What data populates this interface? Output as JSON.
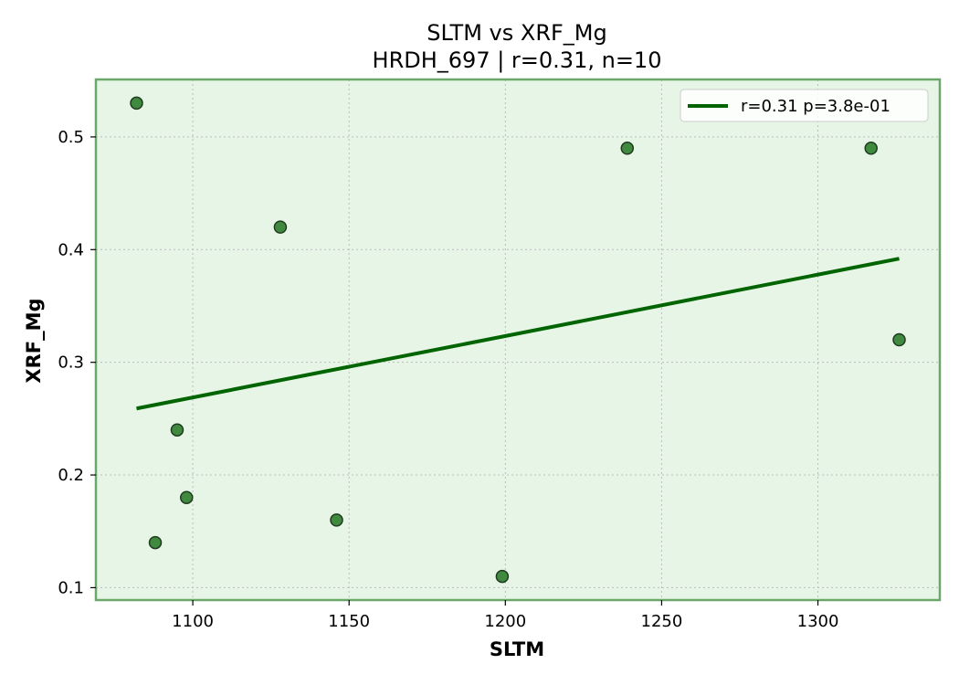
{
  "chart_data": {
    "type": "scatter",
    "title": "SLTM vs XRF_Mg",
    "subtitle": "HRDH_697 | r=0.31, n=10",
    "xlabel": "SLTM",
    "ylabel": "XRF_Mg",
    "xlim": [
      1069,
      1339
    ],
    "ylim": [
      0.089,
      0.551
    ],
    "xticks": [
      1100,
      1150,
      1200,
      1250,
      1300
    ],
    "yticks": [
      0.1,
      0.2,
      0.3,
      0.4,
      0.5
    ],
    "xtick_labels": [
      "1100",
      "1150",
      "1200",
      "1250",
      "1300"
    ],
    "ytick_labels": [
      "0.1",
      "0.2",
      "0.3",
      "0.4",
      "0.5"
    ],
    "grid": true,
    "legend_position": "top-right",
    "colors": {
      "background": "#e7f5e7",
      "frame": "#6aa86a",
      "point_fill": "#3f8a3f",
      "point_edge": "#1f3a1f",
      "fit_line": "#006400"
    },
    "points": [
      {
        "x": 1082,
        "y": 0.53
      },
      {
        "x": 1088,
        "y": 0.14
      },
      {
        "x": 1095,
        "y": 0.24
      },
      {
        "x": 1098,
        "y": 0.18
      },
      {
        "x": 1128,
        "y": 0.42
      },
      {
        "x": 1146,
        "y": 0.16
      },
      {
        "x": 1199,
        "y": 0.11
      },
      {
        "x": 1239,
        "y": 0.49
      },
      {
        "x": 1317,
        "y": 0.49
      },
      {
        "x": 1326,
        "y": 0.32
      }
    ],
    "fit_line": {
      "label": "r=0.31  p=3.8e-01",
      "x": [
        1082,
        1326
      ],
      "y": [
        0.259,
        0.392
      ]
    }
  }
}
